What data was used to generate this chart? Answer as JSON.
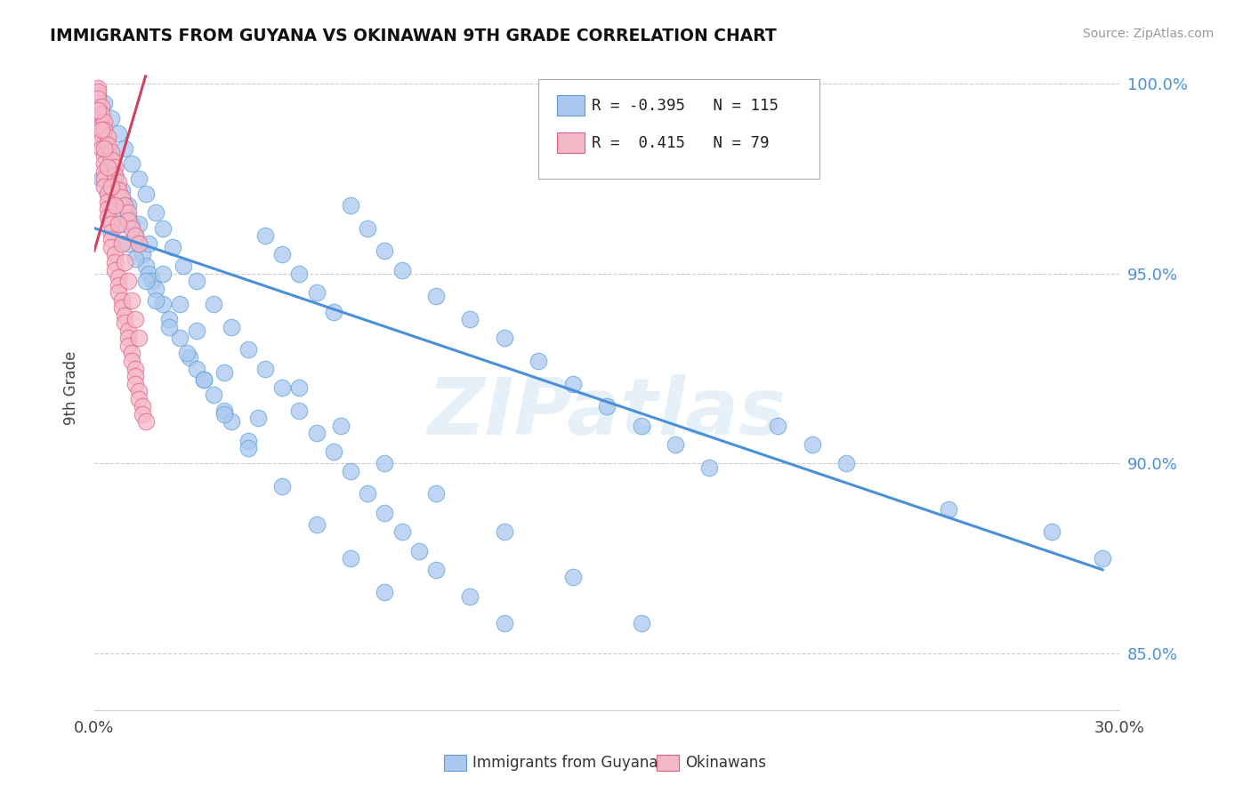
{
  "title": "IMMIGRANTS FROM GUYANA VS OKINAWAN 9TH GRADE CORRELATION CHART",
  "source_text": "Source: ZipAtlas.com",
  "ylabel": "9th Grade",
  "xlim": [
    0.0,
    0.3
  ],
  "ylim": [
    0.835,
    1.005
  ],
  "xtick_positions": [
    0.0,
    0.3
  ],
  "xtick_labels": [
    "0.0%",
    "30.0%"
  ],
  "yticks_right": [
    0.85,
    0.9,
    0.95,
    1.0
  ],
  "ytick_labels_right": [
    "85.0%",
    "90.0%",
    "95.0%",
    "100.0%"
  ],
  "blue_fill": "#aac8ef",
  "blue_edge": "#5a9fd4",
  "pink_fill": "#f5b8c8",
  "pink_edge": "#e06080",
  "blue_line_color": "#4a90d9",
  "pink_line_color": "#d04060",
  "legend_blue_label": "Immigrants from Guyana",
  "legend_pink_label": "Okinawans",
  "r_blue": "-0.395",
  "n_blue": "115",
  "r_pink": "0.415",
  "n_pink": "79",
  "watermark": "ZIPatlas",
  "blue_trend_x": [
    0.0,
    0.295
  ],
  "blue_trend_y": [
    0.962,
    0.872
  ],
  "pink_trend_x": [
    0.0,
    0.015
  ],
  "pink_trend_y": [
    0.956,
    1.002
  ],
  "blue_scatter_x": [
    0.001,
    0.002,
    0.003,
    0.004,
    0.005,
    0.006,
    0.007,
    0.008,
    0.009,
    0.01,
    0.011,
    0.012,
    0.013,
    0.014,
    0.015,
    0.016,
    0.017,
    0.018,
    0.02,
    0.022,
    0.025,
    0.028,
    0.03,
    0.032,
    0.035,
    0.038,
    0.04,
    0.045,
    0.05,
    0.055,
    0.06,
    0.065,
    0.07,
    0.075,
    0.08,
    0.085,
    0.09,
    0.1,
    0.11,
    0.12,
    0.13,
    0.14,
    0.15,
    0.16,
    0.17,
    0.18,
    0.2,
    0.21,
    0.22,
    0.25,
    0.28,
    0.295,
    0.003,
    0.005,
    0.007,
    0.009,
    0.011,
    0.013,
    0.015,
    0.018,
    0.02,
    0.023,
    0.026,
    0.03,
    0.035,
    0.04,
    0.045,
    0.05,
    0.055,
    0.06,
    0.065,
    0.07,
    0.075,
    0.08,
    0.085,
    0.09,
    0.095,
    0.1,
    0.11,
    0.12,
    0.002,
    0.004,
    0.006,
    0.008,
    0.01,
    0.012,
    0.015,
    0.018,
    0.022,
    0.027,
    0.032,
    0.038,
    0.045,
    0.055,
    0.065,
    0.075,
    0.085,
    0.004,
    0.006,
    0.008,
    0.01,
    0.013,
    0.016,
    0.02,
    0.025,
    0.03,
    0.038,
    0.048,
    0.06,
    0.072,
    0.085,
    0.1,
    0.12,
    0.14,
    0.16
  ],
  "blue_scatter_y": [
    0.99,
    0.988,
    0.985,
    0.982,
    0.978,
    0.975,
    0.972,
    0.97,
    0.968,
    0.965,
    0.963,
    0.96,
    0.958,
    0.955,
    0.952,
    0.95,
    0.948,
    0.946,
    0.942,
    0.938,
    0.933,
    0.928,
    0.925,
    0.922,
    0.918,
    0.914,
    0.911,
    0.906,
    0.96,
    0.955,
    0.95,
    0.945,
    0.94,
    0.968,
    0.962,
    0.956,
    0.951,
    0.944,
    0.938,
    0.933,
    0.927,
    0.921,
    0.915,
    0.91,
    0.905,
    0.899,
    0.91,
    0.905,
    0.9,
    0.888,
    0.882,
    0.875,
    0.995,
    0.991,
    0.987,
    0.983,
    0.979,
    0.975,
    0.971,
    0.966,
    0.962,
    0.957,
    0.952,
    0.948,
    0.942,
    0.936,
    0.93,
    0.925,
    0.92,
    0.914,
    0.908,
    0.903,
    0.898,
    0.892,
    0.887,
    0.882,
    0.877,
    0.872,
    0.865,
    0.858,
    0.975,
    0.971,
    0.967,
    0.963,
    0.958,
    0.954,
    0.948,
    0.943,
    0.936,
    0.929,
    0.922,
    0.913,
    0.904,
    0.894,
    0.884,
    0.875,
    0.866,
    0.98,
    0.976,
    0.972,
    0.968,
    0.963,
    0.958,
    0.95,
    0.942,
    0.935,
    0.924,
    0.912,
    0.92,
    0.91,
    0.9,
    0.892,
    0.882,
    0.87,
    0.858
  ],
  "pink_scatter_x": [
    0.001,
    0.001,
    0.001,
    0.001,
    0.002,
    0.002,
    0.002,
    0.002,
    0.002,
    0.003,
    0.003,
    0.003,
    0.003,
    0.003,
    0.004,
    0.004,
    0.004,
    0.004,
    0.005,
    0.005,
    0.005,
    0.005,
    0.006,
    0.006,
    0.006,
    0.007,
    0.007,
    0.007,
    0.008,
    0.008,
    0.009,
    0.009,
    0.01,
    0.01,
    0.01,
    0.011,
    0.011,
    0.012,
    0.012,
    0.012,
    0.013,
    0.013,
    0.014,
    0.014,
    0.015,
    0.001,
    0.001,
    0.002,
    0.002,
    0.003,
    0.003,
    0.004,
    0.004,
    0.005,
    0.005,
    0.006,
    0.006,
    0.007,
    0.007,
    0.008,
    0.009,
    0.01,
    0.01,
    0.011,
    0.012,
    0.013,
    0.001,
    0.002,
    0.003,
    0.004,
    0.005,
    0.006,
    0.007,
    0.008,
    0.009,
    0.01,
    0.011,
    0.012,
    0.013
  ],
  "pink_scatter_y": [
    0.999,
    0.997,
    0.995,
    0.993,
    0.991,
    0.989,
    0.987,
    0.985,
    0.983,
    0.981,
    0.979,
    0.977,
    0.975,
    0.973,
    0.971,
    0.969,
    0.967,
    0.965,
    0.963,
    0.961,
    0.959,
    0.957,
    0.955,
    0.953,
    0.951,
    0.949,
    0.947,
    0.945,
    0.943,
    0.941,
    0.939,
    0.937,
    0.935,
    0.933,
    0.931,
    0.929,
    0.927,
    0.925,
    0.923,
    0.921,
    0.919,
    0.917,
    0.915,
    0.913,
    0.911,
    0.998,
    0.996,
    0.994,
    0.992,
    0.99,
    0.988,
    0.986,
    0.984,
    0.982,
    0.98,
    0.978,
    0.976,
    0.974,
    0.972,
    0.97,
    0.968,
    0.966,
    0.964,
    0.962,
    0.96,
    0.958,
    0.993,
    0.988,
    0.983,
    0.978,
    0.973,
    0.968,
    0.963,
    0.958,
    0.953,
    0.948,
    0.943,
    0.938,
    0.933
  ]
}
